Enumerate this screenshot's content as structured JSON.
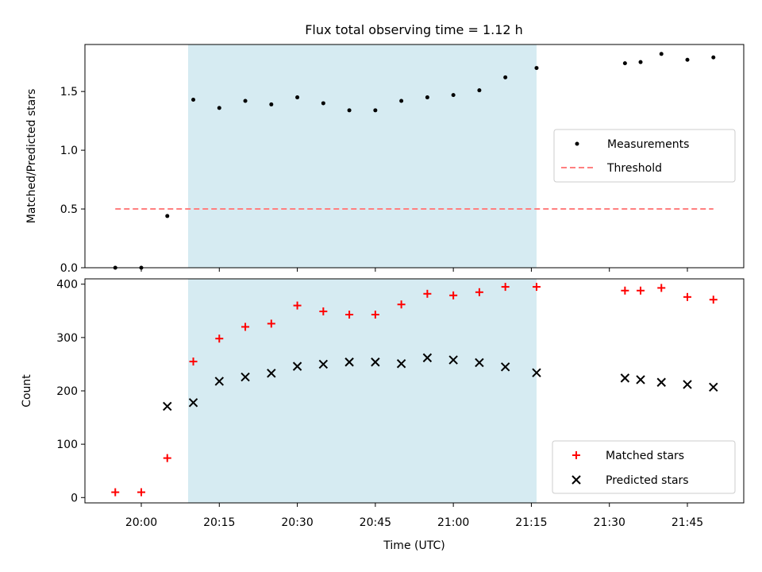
{
  "title": "Flux total observing time = 1.12 h",
  "colors": {
    "shade": "#add8e6",
    "threshold": "#ff7f7f",
    "matched": "#ff0000",
    "predicted": "#000000",
    "measurement": "#000000"
  },
  "x_ticks": [
    "20:00",
    "20:15",
    "20:30",
    "20:45",
    "21:00",
    "21:15",
    "21:30",
    "21:45"
  ],
  "chart_data": [
    {
      "type": "scatter",
      "ylabel": "Matched/Predicted stars",
      "ylim": [
        0,
        1.9
      ],
      "yticks": [
        "0.0",
        "0.5",
        "1.0",
        "1.5"
      ],
      "legend_position": "center-right",
      "observing_window": [
        "20:09",
        "21:16"
      ],
      "x": [
        "19:55",
        "20:00",
        "20:05",
        "20:10",
        "20:15",
        "20:20",
        "20:25",
        "20:30",
        "20:35",
        "20:40",
        "20:45",
        "20:50",
        "20:55",
        "21:00",
        "21:05",
        "21:10",
        "21:16",
        "21:33",
        "21:36",
        "21:40",
        "21:45",
        "21:50"
      ],
      "series": [
        {
          "name": "Measurements",
          "values": [
            0.0,
            0.0,
            0.44,
            1.43,
            1.36,
            1.42,
            1.39,
            1.45,
            1.4,
            1.34,
            1.34,
            1.42,
            1.45,
            1.47,
            1.51,
            1.62,
            1.7,
            1.74,
            1.75,
            1.82,
            1.77,
            1.79
          ]
        },
        {
          "name": "Threshold",
          "kind": "line",
          "x": [
            "19:55",
            "21:50"
          ],
          "values": [
            0.5,
            0.5
          ]
        }
      ]
    },
    {
      "type": "scatter",
      "ylabel": "Count",
      "xlabel": "Time (UTC)",
      "ylim": [
        -10,
        410
      ],
      "yticks": [
        "0",
        "100",
        "200",
        "300",
        "400"
      ],
      "legend_position": "lower-right",
      "observing_window": [
        "20:09",
        "21:16"
      ],
      "series": [
        {
          "name": "Matched stars",
          "x": [
            "19:55",
            "20:00",
            "20:05",
            "20:10",
            "20:15",
            "20:20",
            "20:25",
            "20:30",
            "20:35",
            "20:40",
            "20:45",
            "20:50",
            "20:55",
            "21:00",
            "21:05",
            "21:10",
            "21:16",
            "21:33",
            "21:36",
            "21:40",
            "21:45",
            "21:50"
          ],
          "values": [
            10,
            10,
            74,
            255,
            298,
            320,
            326,
            360,
            349,
            343,
            343,
            362,
            382,
            379,
            385,
            395,
            395,
            388,
            388,
            393,
            376,
            371
          ]
        },
        {
          "name": "Predicted stars",
          "x": [
            "20:05",
            "20:10",
            "20:15",
            "20:20",
            "20:25",
            "20:30",
            "20:35",
            "20:40",
            "20:45",
            "20:50",
            "20:55",
            "21:00",
            "21:05",
            "21:10",
            "21:16",
            "21:33",
            "21:36",
            "21:40",
            "21:45",
            "21:50"
          ],
          "values": [
            171,
            178,
            218,
            226,
            233,
            246,
            250,
            254,
            254,
            251,
            262,
            258,
            253,
            245,
            234,
            224,
            221,
            216,
            212,
            207
          ]
        }
      ]
    }
  ]
}
